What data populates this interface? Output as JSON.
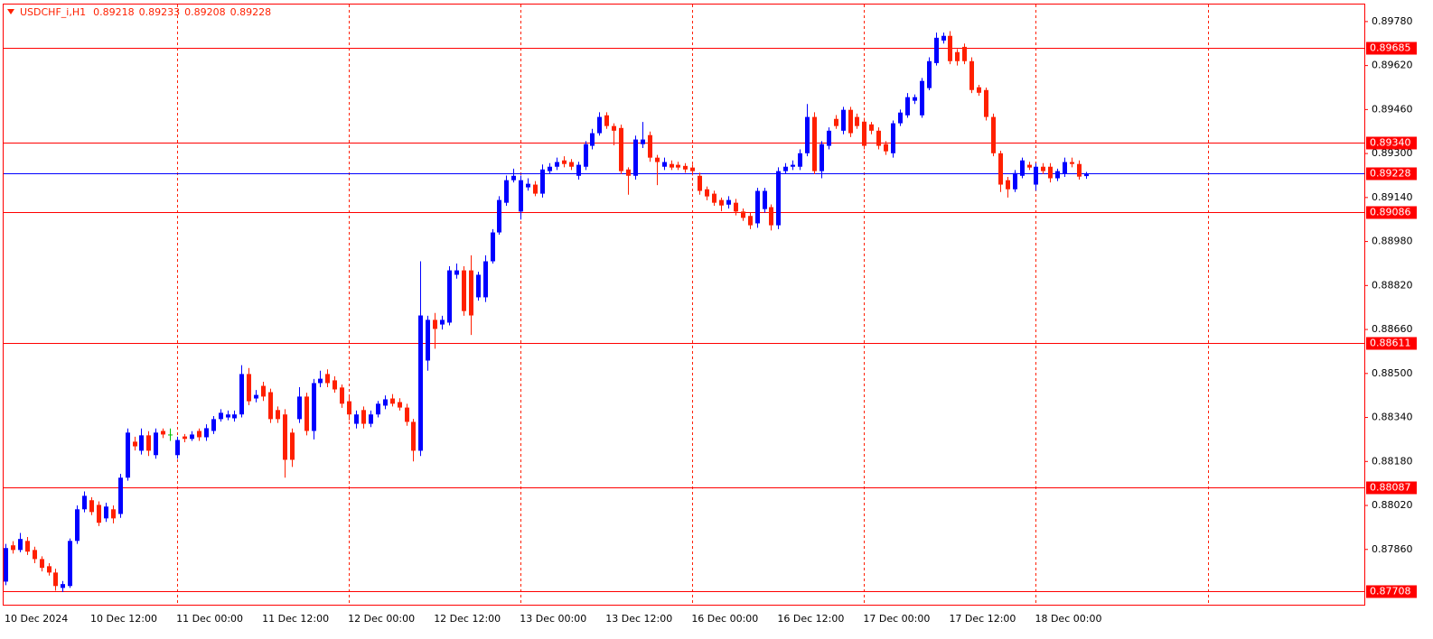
{
  "chart_data": {
    "type": "candlestick",
    "title": "USDCHF_i,H1",
    "bull_color": "#0000ff",
    "bear_color": "#ff2000",
    "doji_color": "#00c000",
    "grid": true,
    "grid_every": 24,
    "ylim": [
      0.87659,
      0.89842
    ],
    "yticks": [
      {
        "value": 0.8978,
        "label": "0.89780"
      },
      {
        "value": 0.8962,
        "label": "0.89620"
      },
      {
        "value": 0.8946,
        "label": "0.89460"
      },
      {
        "value": 0.893,
        "label": "0.89300"
      },
      {
        "value": 0.8914,
        "label": "0.89140"
      },
      {
        "value": 0.8898,
        "label": "0.88980"
      },
      {
        "value": 0.8882,
        "label": "0.88820"
      },
      {
        "value": 0.8866,
        "label": "0.88660"
      },
      {
        "value": 0.885,
        "label": "0.88500"
      },
      {
        "value": 0.8834,
        "label": "0.88340"
      },
      {
        "value": 0.8818,
        "label": "0.88180"
      },
      {
        "value": 0.8802,
        "label": "0.88020"
      },
      {
        "value": 0.8786,
        "label": "0.87860"
      }
    ],
    "levels": [
      {
        "value": 0.89685,
        "label": "0.89685",
        "color": "#ff0000"
      },
      {
        "value": 0.8934,
        "label": "0.89340",
        "color": "#ff0000"
      },
      {
        "value": 0.89228,
        "label": "0.89228",
        "color": "#0000ff"
      },
      {
        "value": 0.89086,
        "label": "0.89086",
        "color": "#ff0000"
      },
      {
        "value": 0.88611,
        "label": "0.88611",
        "color": "#ff0000"
      },
      {
        "value": 0.88087,
        "label": "0.88087",
        "color": "#ff0000"
      },
      {
        "value": 0.87708,
        "label": "0.87708",
        "color": "#ff0000"
      }
    ],
    "categories": [
      "10 Dec 2024",
      null,
      null,
      null,
      null,
      null,
      null,
      null,
      null,
      null,
      null,
      null,
      "10 Dec 12:00",
      null,
      null,
      null,
      null,
      null,
      null,
      null,
      null,
      null,
      null,
      null,
      "11 Dec 00:00",
      null,
      null,
      null,
      null,
      null,
      null,
      null,
      null,
      null,
      null,
      null,
      "11 Dec 12:00",
      null,
      null,
      null,
      null,
      null,
      null,
      null,
      null,
      null,
      null,
      null,
      "12 Dec 00:00",
      null,
      null,
      null,
      null,
      null,
      null,
      null,
      null,
      null,
      null,
      null,
      "12 Dec 12:00",
      null,
      null,
      null,
      null,
      null,
      null,
      null,
      null,
      null,
      null,
      null,
      "13 Dec 00:00",
      null,
      null,
      null,
      null,
      null,
      null,
      null,
      null,
      null,
      null,
      null,
      "13 Dec 12:00",
      null,
      null,
      null,
      null,
      null,
      null,
      null,
      null,
      null,
      null,
      null,
      "16 Dec 00:00",
      null,
      null,
      null,
      null,
      null,
      null,
      null,
      null,
      null,
      null,
      null,
      "16 Dec 12:00",
      null,
      null,
      null,
      null,
      null,
      null,
      null,
      null,
      null,
      null,
      null,
      "17 Dec 00:00",
      null,
      null,
      null,
      null,
      null,
      null,
      null,
      null,
      null,
      null,
      null,
      "17 Dec 12:00",
      null,
      null,
      null,
      null,
      null,
      null,
      null,
      null,
      null,
      null,
      null,
      "18 Dec 00:00",
      null,
      null,
      null,
      null,
      null,
      null,
      null
    ],
    "open": [
      0.87743,
      0.87875,
      0.87858,
      0.87891,
      0.87858,
      0.87825,
      0.87799,
      0.87776,
      0.8772,
      0.87727,
      0.87891,
      0.88006,
      0.88039,
      0.88022,
      0.87973,
      0.88006,
      0.87989,
      0.88121,
      0.88252,
      0.88219,
      0.88275,
      0.88203,
      0.88291,
      0.88278,
      0.88203,
      0.88271,
      0.88262,
      0.88291,
      0.88268,
      0.88291,
      0.88334,
      0.8834,
      0.88337,
      0.88351,
      0.88498,
      0.88409,
      0.88455,
      0.88432,
      0.88367,
      0.88351,
      0.88285,
      0.88334,
      0.88416,
      0.88291,
      0.88465,
      0.88498,
      0.88475,
      0.88449,
      0.88399,
      0.88317,
      0.88367,
      0.88317,
      0.88351,
      0.88383,
      0.88409,
      0.88396,
      0.88376,
      0.88324,
      0.88219,
      0.88547,
      0.88695,
      0.88678,
      0.88685,
      0.88859,
      0.88875,
      0.88875,
      0.88777,
      0.88777,
      0.88908,
      0.89013,
      0.89121,
      0.89203,
      0.89089,
      0.89177,
      0.89187,
      0.89154,
      0.89236,
      0.89252,
      0.89275,
      0.89269,
      0.89219,
      0.89252,
      0.89328,
      0.89374,
      0.89439,
      0.894,
      0.89393,
      0.89242,
      0.89219,
      0.89334,
      0.89367,
      0.89285,
      0.89252,
      0.89262,
      0.89259,
      0.89255,
      0.89249,
      0.89219,
      0.8917,
      0.89154,
      0.89131,
      0.89114,
      0.89121,
      0.89089,
      0.89073,
      0.89046,
      0.89098,
      0.89105,
      0.89039,
      0.89236,
      0.89252,
      0.89252,
      0.89301,
      0.89433,
      0.89236,
      0.89328,
      0.89426,
      0.89383,
      0.89459,
      0.89433,
      0.89416,
      0.89406,
      0.89383,
      0.89334,
      0.89301,
      0.8941,
      0.89439,
      0.89492,
      0.89439,
      0.89538,
      0.89629,
      0.89711,
      0.89728,
      0.89669,
      0.89688,
      0.89636,
      0.89541,
      0.89531,
      0.89433,
      0.89301,
      0.89203,
      0.8917,
      0.89219,
      0.89259,
      0.89187,
      0.89252,
      0.89252,
      0.8921,
      0.89226,
      0.89269,
      0.89262,
      0.89218
    ],
    "high": [
      0.8788,
      0.8789,
      0.8792,
      0.87905,
      0.8787,
      0.87835,
      0.8781,
      0.8779,
      0.87745,
      0.879,
      0.8802,
      0.88071,
      0.8805,
      0.88035,
      0.8803,
      0.8802,
      0.88135,
      0.883,
      0.8827,
      0.883,
      0.8829,
      0.883,
      0.883,
      0.883,
      0.8827,
      0.8828,
      0.8829,
      0.883,
      0.88315,
      0.88345,
      0.8837,
      0.88365,
      0.88365,
      0.8853,
      0.8852,
      0.8844,
      0.8847,
      0.88445,
      0.8838,
      0.8837,
      0.883,
      0.8845,
      0.8843,
      0.8848,
      0.8851,
      0.88515,
      0.8849,
      0.8846,
      0.88415,
      0.88365,
      0.8838,
      0.88365,
      0.884,
      0.8842,
      0.88425,
      0.8841,
      0.8839,
      0.88335,
      0.88908,
      0.8871,
      0.8872,
      0.8871,
      0.8889,
      0.889,
      0.8889,
      0.8893,
      0.8887,
      0.8893,
      0.89025,
      0.89145,
      0.8922,
      0.89245,
      0.8922,
      0.8921,
      0.892,
      0.8926,
      0.89265,
      0.89285,
      0.8929,
      0.8928,
      0.8927,
      0.89345,
      0.8939,
      0.8945,
      0.8945,
      0.8941,
      0.89405,
      0.8925,
      0.89365,
      0.89415,
      0.8938,
      0.89295,
      0.89285,
      0.89275,
      0.8927,
      0.89265,
      0.8926,
      0.8923,
      0.8918,
      0.89165,
      0.8914,
      0.89145,
      0.89135,
      0.891,
      0.89085,
      0.89175,
      0.89175,
      0.89115,
      0.8925,
      0.89265,
      0.89275,
      0.89315,
      0.8948,
      0.8945,
      0.89345,
      0.89395,
      0.8944,
      0.8947,
      0.8947,
      0.89445,
      0.8943,
      0.89415,
      0.89395,
      0.89345,
      0.8942,
      0.8946,
      0.8952,
      0.89515,
      0.89575,
      0.8965,
      0.8974,
      0.8974,
      0.89745,
      0.8968,
      0.897,
      0.8965,
      0.8955,
      0.8954,
      0.89445,
      0.8931,
      0.89215,
      0.8924,
      0.89285,
      0.8927,
      0.89265,
      0.89265,
      0.89265,
      0.89245,
      0.89285,
      0.89285,
      0.89275,
      0.89233
    ],
    "low": [
      0.8773,
      0.87845,
      0.8785,
      0.8784,
      0.8781,
      0.8778,
      0.87765,
      0.8771,
      0.87705,
      0.8772,
      0.8788,
      0.87995,
      0.87985,
      0.87945,
      0.8796,
      0.87955,
      0.87975,
      0.8811,
      0.8822,
      0.88205,
      0.882,
      0.8819,
      0.88265,
      0.88255,
      0.8819,
      0.8825,
      0.88255,
      0.88255,
      0.88255,
      0.8828,
      0.88325,
      0.8833,
      0.88325,
      0.8834,
      0.88385,
      0.88395,
      0.884,
      0.8832,
      0.8832,
      0.88121,
      0.8816,
      0.8832,
      0.88275,
      0.8826,
      0.8845,
      0.8845,
      0.8843,
      0.88375,
      0.8833,
      0.883,
      0.883,
      0.88305,
      0.8834,
      0.8837,
      0.8838,
      0.88365,
      0.8831,
      0.8818,
      0.882,
      0.8851,
      0.8859,
      0.8866,
      0.88675,
      0.88845,
      0.8871,
      0.8864,
      0.88765,
      0.8876,
      0.889,
      0.89005,
      0.8911,
      0.89195,
      0.8906,
      0.89165,
      0.89145,
      0.8914,
      0.89225,
      0.8924,
      0.8925,
      0.8924,
      0.89205,
      0.8924,
      0.89315,
      0.89365,
      0.8939,
      0.8933,
      0.89225,
      0.8915,
      0.89205,
      0.8932,
      0.8927,
      0.89185,
      0.8924,
      0.8924,
      0.8924,
      0.8923,
      0.8922,
      0.8915,
      0.8913,
      0.8911,
      0.8909,
      0.891,
      0.89075,
      0.89055,
      0.89025,
      0.8903,
      0.89085,
      0.8902,
      0.89025,
      0.89225,
      0.8924,
      0.8924,
      0.8929,
      0.89225,
      0.8921,
      0.89315,
      0.8939,
      0.8937,
      0.8936,
      0.8939,
      0.89315,
      0.8937,
      0.89315,
      0.89295,
      0.89285,
      0.894,
      0.8943,
      0.8948,
      0.8943,
      0.8953,
      0.8962,
      0.897,
      0.89625,
      0.8962,
      0.89625,
      0.8952,
      0.8951,
      0.8942,
      0.8929,
      0.8916,
      0.8914,
      0.8916,
      0.8921,
      0.8924,
      0.89165,
      0.89225,
      0.89195,
      0.892,
      0.89215,
      0.8925,
      0.89205,
      0.89208
    ],
    "close": [
      0.87865,
      0.87858,
      0.87898,
      0.87852,
      0.87825,
      0.87793,
      0.87776,
      0.87727,
      0.87734,
      0.87891,
      0.88006,
      0.88055,
      0.87996,
      0.87957,
      0.88016,
      0.87973,
      0.88121,
      0.88285,
      0.88235,
      0.88275,
      0.88219,
      0.88285,
      0.88278,
      0.88278,
      0.88258,
      0.88262,
      0.88278,
      0.88268,
      0.88301,
      0.88334,
      0.88357,
      0.88351,
      0.88351,
      0.88498,
      0.88399,
      0.88422,
      0.88416,
      0.88334,
      0.88334,
      0.88186,
      0.88186,
      0.88416,
      0.88291,
      0.88465,
      0.88481,
      0.88465,
      0.88442,
      0.8839,
      0.88351,
      0.88351,
      0.88317,
      0.88351,
      0.8839,
      0.88406,
      0.8839,
      0.88376,
      0.88324,
      0.88219,
      0.88711,
      0.88695,
      0.88662,
      0.88695,
      0.88875,
      0.88875,
      0.88727,
      0.88711,
      0.88859,
      0.88908,
      0.89013,
      0.89131,
      0.89203,
      0.89219,
      0.89203,
      0.8919,
      0.89154,
      0.89242,
      0.89252,
      0.89269,
      0.89262,
      0.89252,
      0.89259,
      0.89334,
      0.89374,
      0.89433,
      0.894,
      0.89383,
      0.89236,
      0.89219,
      0.89351,
      0.89351,
      0.89285,
      0.89269,
      0.89269,
      0.89249,
      0.89249,
      0.89242,
      0.89236,
      0.89164,
      0.89144,
      0.89121,
      0.89111,
      0.89131,
      0.89089,
      0.89066,
      0.89039,
      0.89164,
      0.89164,
      0.89039,
      0.89236,
      0.89252,
      0.89259,
      0.89301,
      0.89433,
      0.89236,
      0.89334,
      0.89383,
      0.894,
      0.89459,
      0.89374,
      0.894,
      0.89328,
      0.89383,
      0.89328,
      0.89308,
      0.8941,
      0.89449,
      0.89505,
      0.89505,
      0.89564,
      0.89636,
      0.89721,
      0.89728,
      0.89636,
      0.89636,
      0.89636,
      0.89531,
      0.89521,
      0.89433,
      0.89301,
      0.89187,
      0.8917,
      0.89229,
      0.89275,
      0.89249,
      0.89252,
      0.89236,
      0.8921,
      0.89236,
      0.89269,
      0.89262,
      0.89216,
      0.89228
    ]
  }
}
